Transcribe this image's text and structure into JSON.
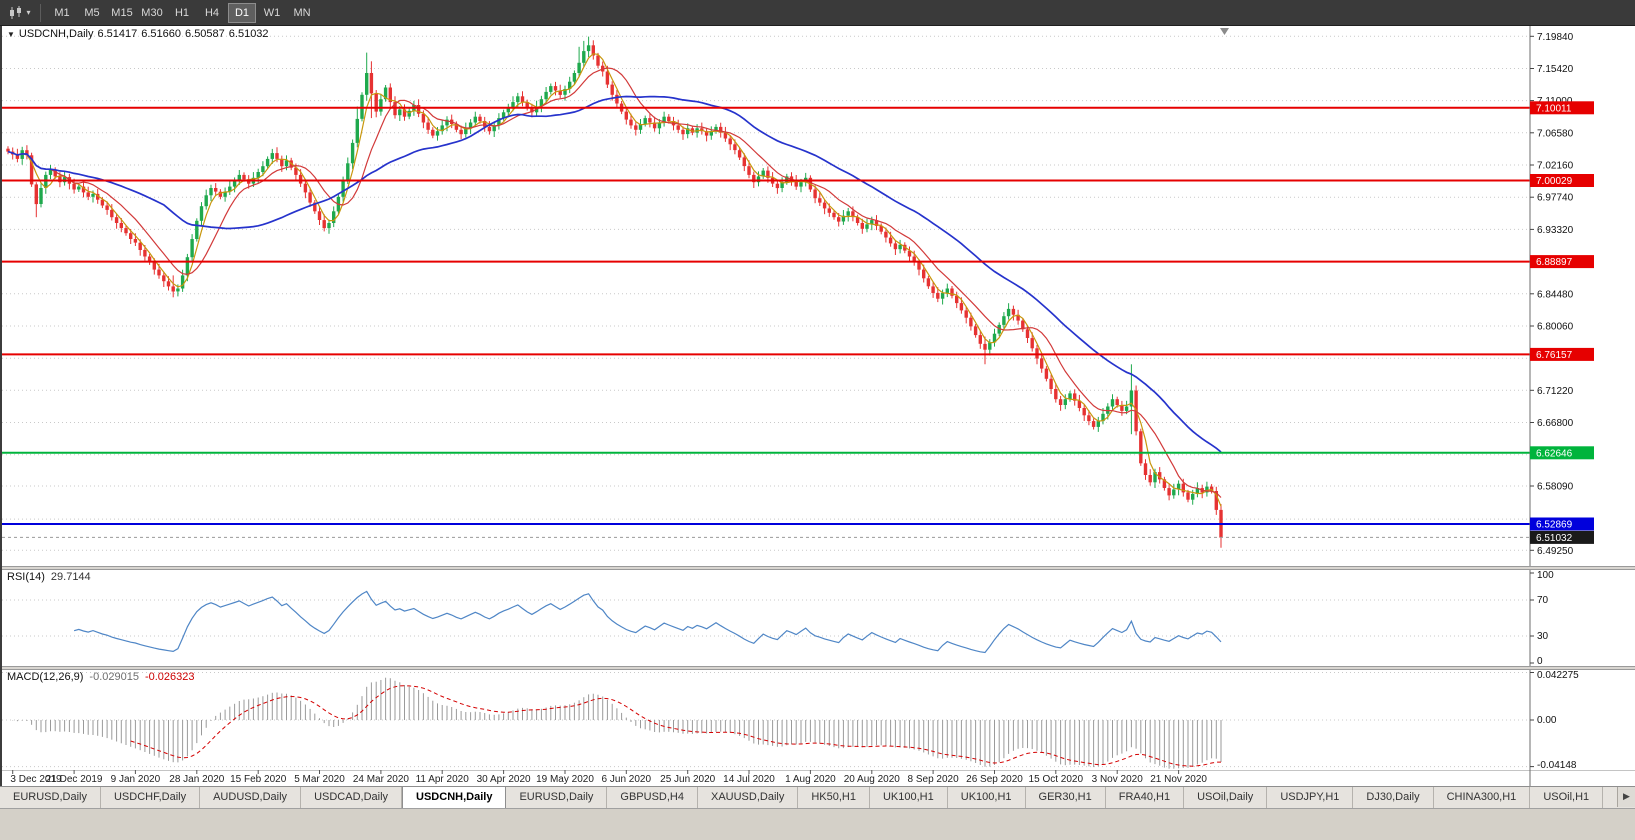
{
  "toolbar": {
    "chart_type_icon": "candlestick-chart",
    "dropdown_icon": "▾",
    "timeframes": [
      {
        "label": "M1",
        "active": false
      },
      {
        "label": "M5",
        "active": false
      },
      {
        "label": "M15",
        "active": false
      },
      {
        "label": "M30",
        "active": false
      },
      {
        "label": "H1",
        "active": false
      },
      {
        "label": "H4",
        "active": false
      },
      {
        "label": "D1",
        "active": true
      },
      {
        "label": "W1",
        "active": false
      },
      {
        "label": "MN",
        "active": false
      }
    ]
  },
  "chart_header": {
    "collapse_icon": "▼",
    "symbol": "USDCNH,Daily",
    "open": "6.51417",
    "high": "6.51660",
    "low": "6.50587",
    "close": "6.51032"
  },
  "rsi": {
    "name": "RSI(14)",
    "value": "29.7144",
    "line_color": "#4f86c6",
    "levels": [
      70,
      30
    ],
    "ticks": [
      {
        "v": 100,
        "label": "100"
      },
      {
        "v": 70,
        "label": "70"
      },
      {
        "v": 30,
        "label": "30"
      },
      {
        "v": 0,
        "label": "0"
      }
    ]
  },
  "macd": {
    "name": "MACD(12,26,9)",
    "main_value": "-0.029015",
    "signal_value": "-0.026323",
    "hist_color": "#9a9a9a",
    "signal_color": "#d40000",
    "ticks": [
      {
        "v": 0.042275,
        "label": "0.042275"
      },
      {
        "v": 0,
        "label": "0.00"
      },
      {
        "v": -0.04148,
        "label": "-0.04148"
      }
    ]
  },
  "tabs": {
    "scroll_icon": "▶",
    "items": [
      {
        "label": "EURUSD,Daily",
        "active": false
      },
      {
        "label": "USDCHF,Daily",
        "active": false
      },
      {
        "label": "AUDUSD,Daily",
        "active": false
      },
      {
        "label": "USDCAD,Daily",
        "active": false
      },
      {
        "label": "USDCNH,Daily",
        "active": true
      },
      {
        "label": "EURUSD,Daily",
        "active": false
      },
      {
        "label": "GBPUSD,H4",
        "active": false
      },
      {
        "label": "XAUUSD,Daily",
        "active": false
      },
      {
        "label": "HK50,H1",
        "active": false
      },
      {
        "label": "UK100,H1",
        "active": false
      },
      {
        "label": "UK100,H1",
        "active": false
      },
      {
        "label": "GER30,H1",
        "active": false
      },
      {
        "label": "FRA40,H1",
        "active": false
      },
      {
        "label": "USOil,Daily",
        "active": false
      },
      {
        "label": "USDJPY,H1",
        "active": false
      },
      {
        "label": "DJ30,Daily",
        "active": false
      },
      {
        "label": "CHINA300,H1",
        "active": false
      },
      {
        "label": "USOil,H1",
        "active": false
      }
    ]
  },
  "chart_data": {
    "type": "candlestick",
    "symbol": "USDCNH",
    "timeframe": "Daily",
    "style": {
      "up_color": "#1fa94d",
      "down_color": "#e63232"
    },
    "price_axis": {
      "min": 6.471,
      "max": 7.2125,
      "visible_ticks": [
        {
          "v": 7.1984,
          "label": "7.19840"
        },
        {
          "v": 7.1542,
          "label": "7.15420"
        },
        {
          "v": 7.11,
          "label": "7.11000"
        },
        {
          "v": 7.0658,
          "label": "7.06580"
        },
        {
          "v": 7.0216,
          "label": "7.02160"
        },
        {
          "v": 6.9774,
          "label": "6.97740"
        },
        {
          "v": 6.9332,
          "label": "6.93320"
        },
        {
          "v": 6.8448,
          "label": "6.84480"
        },
        {
          "v": 6.8006,
          "label": "6.80060"
        },
        {
          "v": 6.7122,
          "label": "6.71220"
        },
        {
          "v": 6.668,
          "label": "6.66800"
        },
        {
          "v": 6.5809,
          "label": "6.58090"
        },
        {
          "v": 6.4925,
          "label": "6.49250"
        }
      ]
    },
    "grid_prices": [
      7.1984,
      7.1542,
      7.11,
      7.0658,
      7.0216,
      6.9774,
      6.9332,
      6.889,
      6.8448,
      6.8006,
      6.7564,
      6.7122,
      6.668,
      6.6238,
      6.5809,
      6.5354,
      6.4925
    ],
    "hlines": [
      {
        "price": 7.10011,
        "label": "7.10011",
        "color": "#e60000"
      },
      {
        "price": 7.00029,
        "label": "7.00029",
        "color": "#e60000"
      },
      {
        "price": 6.88897,
        "label": "6.88897",
        "color": "#e60000"
      },
      {
        "price": 6.76157,
        "label": "6.76157",
        "color": "#e60000"
      },
      {
        "price": 6.62646,
        "label": "6.62646",
        "color": "#00b43c"
      },
      {
        "price": 6.52869,
        "label": "6.52869",
        "color": "#0000dc"
      }
    ],
    "current_price": {
      "value": 6.51032,
      "label": "6.51032",
      "color": "#1a1a1a"
    },
    "moving_averages": [
      {
        "period": 4,
        "color": "#c8960c",
        "dash": ""
      },
      {
        "period": 10,
        "color": "#d23a3a",
        "dash": ""
      },
      {
        "period": 34,
        "color": "#2633cc",
        "dash": ""
      }
    ],
    "rsi_period": 14,
    "macd_params": [
      12,
      26,
      9
    ],
    "x_labels": [
      "3 Dec 2019",
      "21 Dec 2019",
      "9 Jan 2020",
      "28 Jan 2020",
      "15 Feb 2020",
      "5 Mar 2020",
      "24 Mar 2020",
      "11 Apr 2020",
      "30 Apr 2020",
      "19 May 2020",
      "6 Jun 2020",
      "25 Jun 2020",
      "14 Jul 2020",
      "1 Aug 2020",
      "20 Aug 2020",
      "8 Sep 2020",
      "26 Sep 2020",
      "15 Oct 2020",
      "3 Nov 2020",
      "21 Nov 2020"
    ],
    "x_label_bar_indices": [
      1,
      14,
      27,
      40,
      53,
      66,
      79,
      92,
      105,
      118,
      131,
      144,
      157,
      170,
      183,
      196,
      209,
      222,
      235,
      248
    ],
    "bars": {
      "closes": [
        7.04,
        7.036,
        7.03,
        7.042,
        7.035,
        6.995,
        6.968,
        6.99,
        7.008,
        7.015,
        7.006,
        6.998,
        7.005,
        6.996,
        6.988,
        6.992,
        6.984,
        6.978,
        6.982,
        6.974,
        6.966,
        6.96,
        6.95,
        6.942,
        6.935,
        6.928,
        6.92,
        6.915,
        6.905,
        6.896,
        6.888,
        6.878,
        6.87,
        6.862,
        6.855,
        6.848,
        6.852,
        6.87,
        6.895,
        6.92,
        6.945,
        6.965,
        6.98,
        6.99,
        6.985,
        6.978,
        6.985,
        6.992,
        7.0,
        7.008,
        7.002,
        6.996,
        7.004,
        7.012,
        7.02,
        7.03,
        7.038,
        7.03,
        7.02,
        7.028,
        7.018,
        7.008,
        6.996,
        6.984,
        6.97,
        6.958,
        6.946,
        6.935,
        6.942,
        6.958,
        6.978,
        7.0,
        7.024,
        7.052,
        7.085,
        7.118,
        7.148,
        7.12,
        7.095,
        7.112,
        7.128,
        7.108,
        7.09,
        7.098,
        7.088,
        7.096,
        7.104,
        7.092,
        7.08,
        7.07,
        7.062,
        7.068,
        7.076,
        7.084,
        7.078,
        7.07,
        7.064,
        7.072,
        7.08,
        7.088,
        7.082,
        7.074,
        7.068,
        7.076,
        7.086,
        7.094,
        7.1,
        7.108,
        7.116,
        7.108,
        7.1,
        7.094,
        7.102,
        7.112,
        7.122,
        7.13,
        7.124,
        7.118,
        7.126,
        7.136,
        7.148,
        7.162,
        7.178,
        7.186,
        7.172,
        7.158,
        7.15,
        7.132,
        7.118,
        7.106,
        7.095,
        7.084,
        7.076,
        7.07,
        7.078,
        7.086,
        7.08,
        7.072,
        7.08,
        7.088,
        7.082,
        7.076,
        7.07,
        7.064,
        7.072,
        7.066,
        7.072,
        7.068,
        7.062,
        7.068,
        7.074,
        7.066,
        7.058,
        7.05,
        7.042,
        7.032,
        7.02,
        7.008,
        6.998,
        7.006,
        7.014,
        7.004,
        6.996,
        6.99,
        6.998,
        7.006,
        7.0,
        6.992,
        6.998,
        7.004,
        6.988,
        6.976,
        6.97,
        6.962,
        6.956,
        6.95,
        6.944,
        6.952,
        6.958,
        6.95,
        6.942,
        6.934,
        6.94,
        6.946,
        6.938,
        6.93,
        6.922,
        6.914,
        6.906,
        6.912,
        6.904,
        6.896,
        6.888,
        6.878,
        6.866,
        6.855,
        6.846,
        6.838,
        6.846,
        6.852,
        6.842,
        6.832,
        6.822,
        6.812,
        6.8,
        6.788,
        6.776,
        6.768,
        6.778,
        6.79,
        6.802,
        6.814,
        6.824,
        6.816,
        6.808,
        6.796,
        6.784,
        6.77,
        6.756,
        6.742,
        6.728,
        6.714,
        6.7,
        6.692,
        6.7,
        6.708,
        6.698,
        6.688,
        6.678,
        6.67,
        6.662,
        6.67,
        6.68,
        6.69,
        6.7,
        6.692,
        6.684,
        6.69,
        6.712,
        6.656,
        6.612,
        6.596,
        6.586,
        6.6,
        6.59,
        6.578,
        6.568,
        6.576,
        6.584,
        6.572,
        6.562,
        6.57,
        6.578,
        6.572,
        6.58,
        6.574,
        6.548,
        6.51
      ],
      "wick_overrides": {
        "6": [
          6.998,
          6.95
        ],
        "35": [
          6.87,
          6.84
        ],
        "74": [
          7.102,
          7.046
        ],
        "76": [
          7.176,
          7.11
        ],
        "77": [
          7.164,
          7.086
        ],
        "121": [
          7.184,
          7.142
        ],
        "122": [
          7.192,
          7.156
        ],
        "123": [
          7.198,
          7.17
        ],
        "207": [
          6.786,
          6.748
        ],
        "238": [
          6.748,
          6.652
        ],
        "257": [
          6.556,
          6.496
        ]
      }
    }
  }
}
